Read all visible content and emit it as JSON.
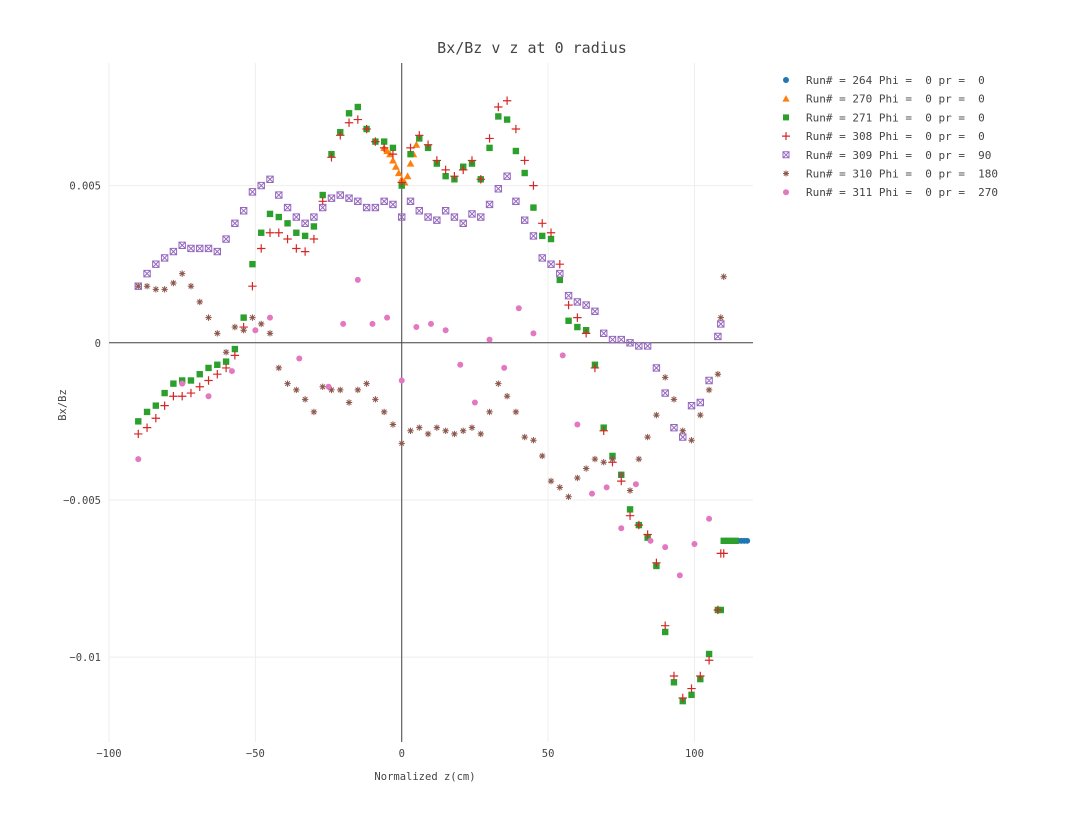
{
  "chart_data": {
    "type": "scatter",
    "title": "Bx/Bz v z at 0 radius",
    "xlabel": "Normalized z(cm)",
    "ylabel": "Bx/Bz",
    "xlim": [
      -100,
      120
    ],
    "ylim": [
      -0.0127,
      0.0089
    ],
    "xticks": [
      -100,
      -50,
      0,
      50,
      100
    ],
    "xtick_labels": [
      "−100",
      "−50",
      "0",
      "50",
      "100"
    ],
    "yticks": [
      -0.01,
      -0.005,
      0,
      0.005
    ],
    "ytick_labels": [
      "−0.01",
      "−0.005",
      "0",
      "0.005"
    ],
    "grid": true,
    "zero_lines": true,
    "legend_position": "top-right",
    "series": [
      {
        "name": "Run# = 264 Phi =  0 pr =  0",
        "color": "#1f77b4",
        "marker": "circle",
        "x": [
          110,
          111,
          112,
          113,
          114,
          115,
          116,
          117,
          118
        ],
        "y": [
          -0.0063,
          -0.0063,
          -0.0063,
          -0.0063,
          -0.0063,
          -0.0063,
          -0.0063,
          -0.0063,
          -0.0063
        ]
      },
      {
        "name": "Run# = 270 Phi =  0 pr =  0",
        "color": "#ff7f0e",
        "marker": "triangle-up",
        "x": [
          -6,
          -5,
          -4,
          -3,
          -2,
          -1,
          0,
          1,
          2,
          3,
          4,
          5
        ],
        "y": [
          0.0062,
          0.0061,
          0.006,
          0.0058,
          0.0056,
          0.0054,
          0.0052,
          0.0051,
          0.0053,
          0.0057,
          0.006,
          0.0063
        ]
      },
      {
        "name": "Run# = 271 Phi =  0 pr =  0",
        "color": "#2ca02c",
        "marker": "square",
        "x": [
          -90,
          -87,
          -84,
          -81,
          -78,
          -75,
          -72,
          -69,
          -66,
          -63,
          -60,
          -57,
          -54,
          -51,
          -48,
          -45,
          -42,
          -39,
          -36,
          -33,
          -30,
          -27,
          -24,
          -21,
          -18,
          -15,
          -12,
          -9,
          -6,
          -3,
          0,
          3,
          6,
          9,
          12,
          15,
          18,
          21,
          24,
          27,
          30,
          33,
          36,
          39,
          42,
          45,
          48,
          51,
          54,
          57,
          60,
          63,
          66,
          69,
          72,
          75,
          78,
          81,
          84,
          87,
          90,
          93,
          96,
          99,
          102,
          105,
          108,
          109,
          110,
          112,
          114
        ],
        "y": [
          -0.0025,
          -0.0022,
          -0.002,
          -0.0016,
          -0.0013,
          -0.0012,
          -0.0012,
          -0.001,
          -0.0008,
          -0.0007,
          -0.0006,
          -0.0002,
          0.0008,
          0.0025,
          0.0035,
          0.0041,
          0.004,
          0.0038,
          0.0035,
          0.0034,
          0.0037,
          0.0047,
          0.006,
          0.0067,
          0.0073,
          0.0075,
          0.0068,
          0.0064,
          0.0064,
          0.0062,
          0.005,
          0.006,
          0.0065,
          0.0062,
          0.0057,
          0.0053,
          0.0052,
          0.0056,
          0.0057,
          0.0052,
          0.0062,
          0.0072,
          0.0071,
          0.0061,
          0.0054,
          0.0043,
          0.0034,
          0.0033,
          0.002,
          0.0007,
          0.0005,
          0.0004,
          -0.0007,
          -0.0027,
          -0.0036,
          -0.0042,
          -0.0053,
          -0.0058,
          -0.0062,
          -0.0071,
          -0.0092,
          -0.0108,
          -0.0114,
          -0.0112,
          -0.0107,
          -0.0099,
          -0.0085,
          -0.0085,
          -0.0063,
          -0.0063,
          -0.0063
        ]
      },
      {
        "name": "Run# = 308 Phi =  0 pr =  0",
        "color": "#d62728",
        "marker": "cross",
        "x": [
          -90,
          -87,
          -84,
          -81,
          -78,
          -75,
          -72,
          -69,
          -66,
          -63,
          -60,
          -57,
          -54,
          -51,
          -48,
          -45,
          -42,
          -39,
          -36,
          -33,
          -30,
          -27,
          -24,
          -21,
          -18,
          -15,
          -12,
          -9,
          -6,
          -3,
          0,
          3,
          6,
          9,
          12,
          15,
          18,
          21,
          24,
          27,
          30,
          33,
          36,
          39,
          42,
          45,
          48,
          51,
          54,
          57,
          60,
          63,
          66,
          69,
          72,
          75,
          78,
          81,
          84,
          87,
          90,
          93,
          96,
          99,
          102,
          105,
          108,
          109,
          110
        ],
        "y": [
          -0.0029,
          -0.0027,
          -0.0024,
          -0.002,
          -0.0017,
          -0.0017,
          -0.0016,
          -0.0014,
          -0.0012,
          -0.001,
          -0.0008,
          -0.0004,
          0.0005,
          0.0018,
          0.003,
          0.0035,
          0.0035,
          0.0033,
          0.003,
          0.0029,
          0.0033,
          0.0045,
          0.0059,
          0.0066,
          0.007,
          0.0071,
          0.0068,
          0.0064,
          0.0062,
          0.006,
          0.0051,
          0.0062,
          0.0066,
          0.0063,
          0.0058,
          0.0055,
          0.0053,
          0.0055,
          0.0058,
          0.0052,
          0.0065,
          0.0075,
          0.0077,
          0.0068,
          0.0058,
          0.005,
          0.0038,
          0.0035,
          0.0025,
          0.0012,
          0.0008,
          0.0003,
          -0.0008,
          -0.0028,
          -0.0038,
          -0.0044,
          -0.0055,
          -0.0058,
          -0.0061,
          -0.007,
          -0.009,
          -0.0106,
          -0.0113,
          -0.011,
          -0.0106,
          -0.0101,
          -0.0085,
          -0.0067,
          -0.0067
        ]
      },
      {
        "name": "Run# = 309 Phi =  0 pr =  90",
        "color": "#9467bd",
        "marker": "square-x-open",
        "x": [
          -90,
          -87,
          -84,
          -81,
          -78,
          -75,
          -72,
          -69,
          -66,
          -63,
          -60,
          -57,
          -54,
          -51,
          -48,
          -45,
          -42,
          -39,
          -36,
          -33,
          -30,
          -27,
          -24,
          -21,
          -18,
          -15,
          -12,
          -9,
          -6,
          -3,
          0,
          3,
          6,
          9,
          12,
          15,
          18,
          21,
          24,
          27,
          30,
          33,
          36,
          39,
          42,
          45,
          48,
          51,
          54,
          57,
          60,
          63,
          66,
          69,
          72,
          75,
          78,
          81,
          84,
          87,
          90,
          93,
          96,
          99,
          102,
          105,
          108,
          109
        ],
        "y": [
          0.0018,
          0.0022,
          0.0025,
          0.0027,
          0.0029,
          0.0031,
          0.003,
          0.003,
          0.003,
          0.0029,
          0.0033,
          0.0038,
          0.0042,
          0.0048,
          0.005,
          0.0052,
          0.0047,
          0.0043,
          0.004,
          0.0038,
          0.004,
          0.0043,
          0.0046,
          0.0047,
          0.0046,
          0.0045,
          0.0043,
          0.0043,
          0.0045,
          0.0044,
          0.004,
          0.0045,
          0.0042,
          0.004,
          0.0039,
          0.0042,
          0.004,
          0.0038,
          0.0041,
          0.004,
          0.0044,
          0.0049,
          0.0053,
          0.0045,
          0.0039,
          0.0034,
          0.0027,
          0.0025,
          0.0022,
          0.0015,
          0.0013,
          0.0012,
          0.001,
          0.0003,
          0.0001,
          0.0001,
          0,
          -0.0001,
          -0.0001,
          -0.0008,
          -0.0016,
          -0.0027,
          -0.003,
          -0.002,
          -0.0019,
          -0.0012,
          0.0002,
          0.0006
        ]
      },
      {
        "name": "Run# = 310 Phi =  0 pr =  180",
        "color": "#8c564b",
        "marker": "asterisk",
        "x": [
          -90,
          -87,
          -84,
          -81,
          -78,
          -75,
          -72,
          -69,
          -66,
          -63,
          -60,
          -57,
          -54,
          -51,
          -48,
          -45,
          -42,
          -39,
          -36,
          -33,
          -30,
          -27,
          -24,
          -21,
          -18,
          -15,
          -12,
          -9,
          -6,
          -3,
          0,
          3,
          6,
          9,
          12,
          15,
          18,
          21,
          24,
          27,
          30,
          33,
          36,
          39,
          42,
          45,
          48,
          51,
          54,
          57,
          60,
          63,
          66,
          69,
          72,
          75,
          78,
          81,
          84,
          87,
          90,
          93,
          96,
          99,
          102,
          105,
          108,
          109,
          110
        ],
        "y": [
          0.0018,
          0.0018,
          0.0017,
          0.0017,
          0.0019,
          0.0022,
          0.0018,
          0.0013,
          0.0008,
          0.0003,
          -0.0003,
          0.0005,
          0.0004,
          0.0008,
          0.0006,
          0.0003,
          -0.0008,
          -0.0013,
          -0.0015,
          -0.0018,
          -0.0022,
          -0.0014,
          -0.0015,
          -0.0015,
          -0.0019,
          -0.0015,
          -0.0013,
          -0.0018,
          -0.0022,
          -0.0026,
          -0.0032,
          -0.0028,
          -0.0027,
          -0.0029,
          -0.0027,
          -0.0028,
          -0.0029,
          -0.0028,
          -0.0027,
          -0.0029,
          -0.0022,
          -0.0013,
          -0.0017,
          -0.0022,
          -0.003,
          -0.0031,
          -0.0036,
          -0.0044,
          -0.0046,
          -0.0049,
          -0.0043,
          -0.004,
          -0.0037,
          -0.0038,
          -0.0037,
          -0.0042,
          -0.0047,
          -0.0037,
          -0.003,
          -0.0023,
          -0.0011,
          -0.0018,
          -0.0028,
          -0.0031,
          -0.0023,
          -0.0015,
          -0.001,
          0.0008,
          0.0021
        ]
      },
      {
        "name": "Run# = 311 Phi =  0 pr =  270",
        "color": "#e377c2",
        "marker": "circle",
        "x": [
          -90,
          -75,
          -66,
          -58,
          -50,
          -45,
          -35,
          -25,
          -20,
          -15,
          -10,
          -5,
          0,
          5,
          10,
          15,
          20,
          25,
          30,
          35,
          40,
          45,
          55,
          60,
          65,
          70,
          75,
          80,
          85,
          90,
          95,
          100,
          105
        ],
        "y": [
          -0.0037,
          -0.0013,
          -0.0017,
          -0.0009,
          0.0004,
          0.0008,
          -0.0005,
          -0.0014,
          0.0006,
          0.002,
          0.0006,
          0.0008,
          -0.0012,
          0.0005,
          0.0006,
          0.0004,
          -0.0007,
          -0.0019,
          0.0001,
          -0.0008,
          0.0011,
          0.0003,
          -0.0004,
          -0.0026,
          -0.0048,
          -0.0046,
          -0.0059,
          -0.0045,
          -0.0063,
          -0.0065,
          -0.0074,
          -0.0064,
          -0.0056
        ]
      }
    ]
  }
}
